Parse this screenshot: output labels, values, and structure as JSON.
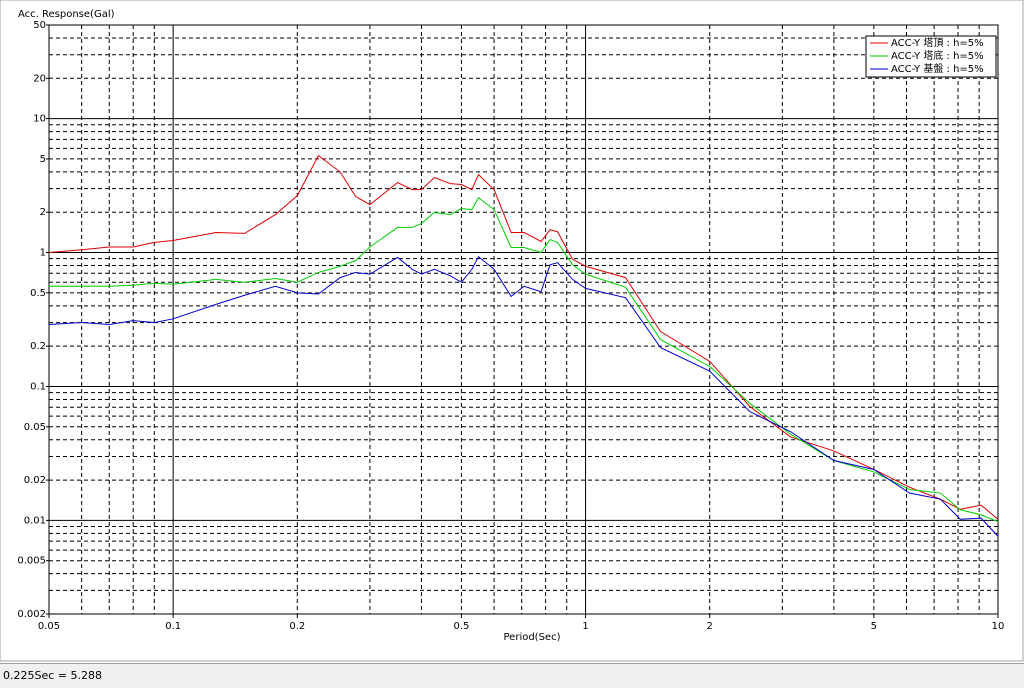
{
  "chart_data": {
    "type": "line",
    "ylabel": "Acc. Response(Gal)",
    "xlabel": "Period(Sec)",
    "log_x": true,
    "log_y": true,
    "xlim": [
      0.05,
      10
    ],
    "ylim": [
      0.002,
      50
    ],
    "xticks": [
      0.05,
      0.1,
      0.2,
      0.5,
      1,
      2,
      5,
      10
    ],
    "yticks": [
      50,
      20,
      10,
      5,
      2,
      1,
      0.5,
      0.2,
      0.1,
      0.05,
      0.02,
      0.01,
      0.005,
      0.002
    ],
    "xgrid": [
      0.06,
      0.07,
      0.08,
      0.09,
      0.1,
      0.2,
      0.3,
      0.4,
      0.5,
      0.6,
      0.7,
      0.8,
      0.9,
      1,
      2,
      3,
      4,
      5,
      6,
      7,
      8,
      9
    ],
    "ygrid": [
      0.003,
      0.004,
      0.005,
      0.006,
      0.007,
      0.008,
      0.009,
      0.01,
      0.02,
      0.03,
      0.04,
      0.05,
      0.06,
      0.07,
      0.08,
      0.09,
      0.1,
      0.2,
      0.3,
      0.4,
      0.5,
      0.6,
      0.7,
      0.8,
      0.9,
      1,
      2,
      3,
      4,
      5,
      6,
      7,
      8,
      9,
      10,
      20,
      30,
      40
    ],
    "legend": "upper right",
    "x": [
      0.05,
      0.06,
      0.07,
      0.08,
      0.09,
      0.1,
      0.127,
      0.149,
      0.177,
      0.2,
      0.225,
      0.254,
      0.277,
      0.3,
      0.35,
      0.38,
      0.4,
      0.43,
      0.47,
      0.5,
      0.53,
      0.55,
      0.6,
      0.66,
      0.71,
      0.78,
      0.82,
      0.855,
      0.93,
      1,
      1.25,
      1.52,
      2,
      2.5,
      3.14,
      4,
      5,
      6.1,
      7.25,
      8.1,
      9.1,
      10
    ],
    "series": [
      {
        "name": "ACC-Y 塔頂 : h=5%",
        "color": "#e00000",
        "values": [
          1.0,
          1.05,
          1.1,
          1.1,
          1.19,
          1.23,
          1.41,
          1.39,
          1.92,
          2.66,
          5.29,
          4.0,
          2.62,
          2.28,
          3.33,
          2.95,
          2.95,
          3.63,
          3.27,
          3.22,
          2.95,
          3.82,
          2.95,
          1.41,
          1.41,
          1.21,
          1.48,
          1.43,
          0.89,
          0.79,
          0.65,
          0.257,
          0.154,
          0.071,
          0.042,
          0.033,
          0.024,
          0.0177,
          0.0144,
          0.0121,
          0.013,
          0.0102
        ]
      },
      {
        "name": "ACC-Y 塔底 : h=5%",
        "color": "#00d000",
        "values": [
          0.56,
          0.56,
          0.56,
          0.57,
          0.59,
          0.58,
          0.63,
          0.6,
          0.64,
          0.6,
          0.71,
          0.79,
          0.87,
          1.1,
          1.54,
          1.54,
          1.65,
          1.99,
          1.92,
          2.13,
          2.09,
          2.57,
          2.09,
          1.09,
          1.09,
          1.0,
          1.25,
          1.19,
          0.81,
          0.69,
          0.55,
          0.224,
          0.141,
          0.075,
          0.044,
          0.028,
          0.023,
          0.017,
          0.016,
          0.012,
          0.011,
          0.0098
        ]
      },
      {
        "name": "ACC-Y 基盤 : h=5%",
        "color": "#0000d0",
        "values": [
          0.29,
          0.3,
          0.29,
          0.31,
          0.3,
          0.32,
          0.41,
          0.48,
          0.56,
          0.5,
          0.49,
          0.65,
          0.71,
          0.69,
          0.92,
          0.75,
          0.69,
          0.75,
          0.67,
          0.6,
          0.75,
          0.93,
          0.75,
          0.47,
          0.56,
          0.51,
          0.81,
          0.84,
          0.63,
          0.54,
          0.46,
          0.195,
          0.13,
          0.065,
          0.046,
          0.028,
          0.024,
          0.016,
          0.0144,
          0.0102,
          0.0104,
          0.0076
        ]
      }
    ]
  },
  "status": "0.225Sec = 5.288"
}
